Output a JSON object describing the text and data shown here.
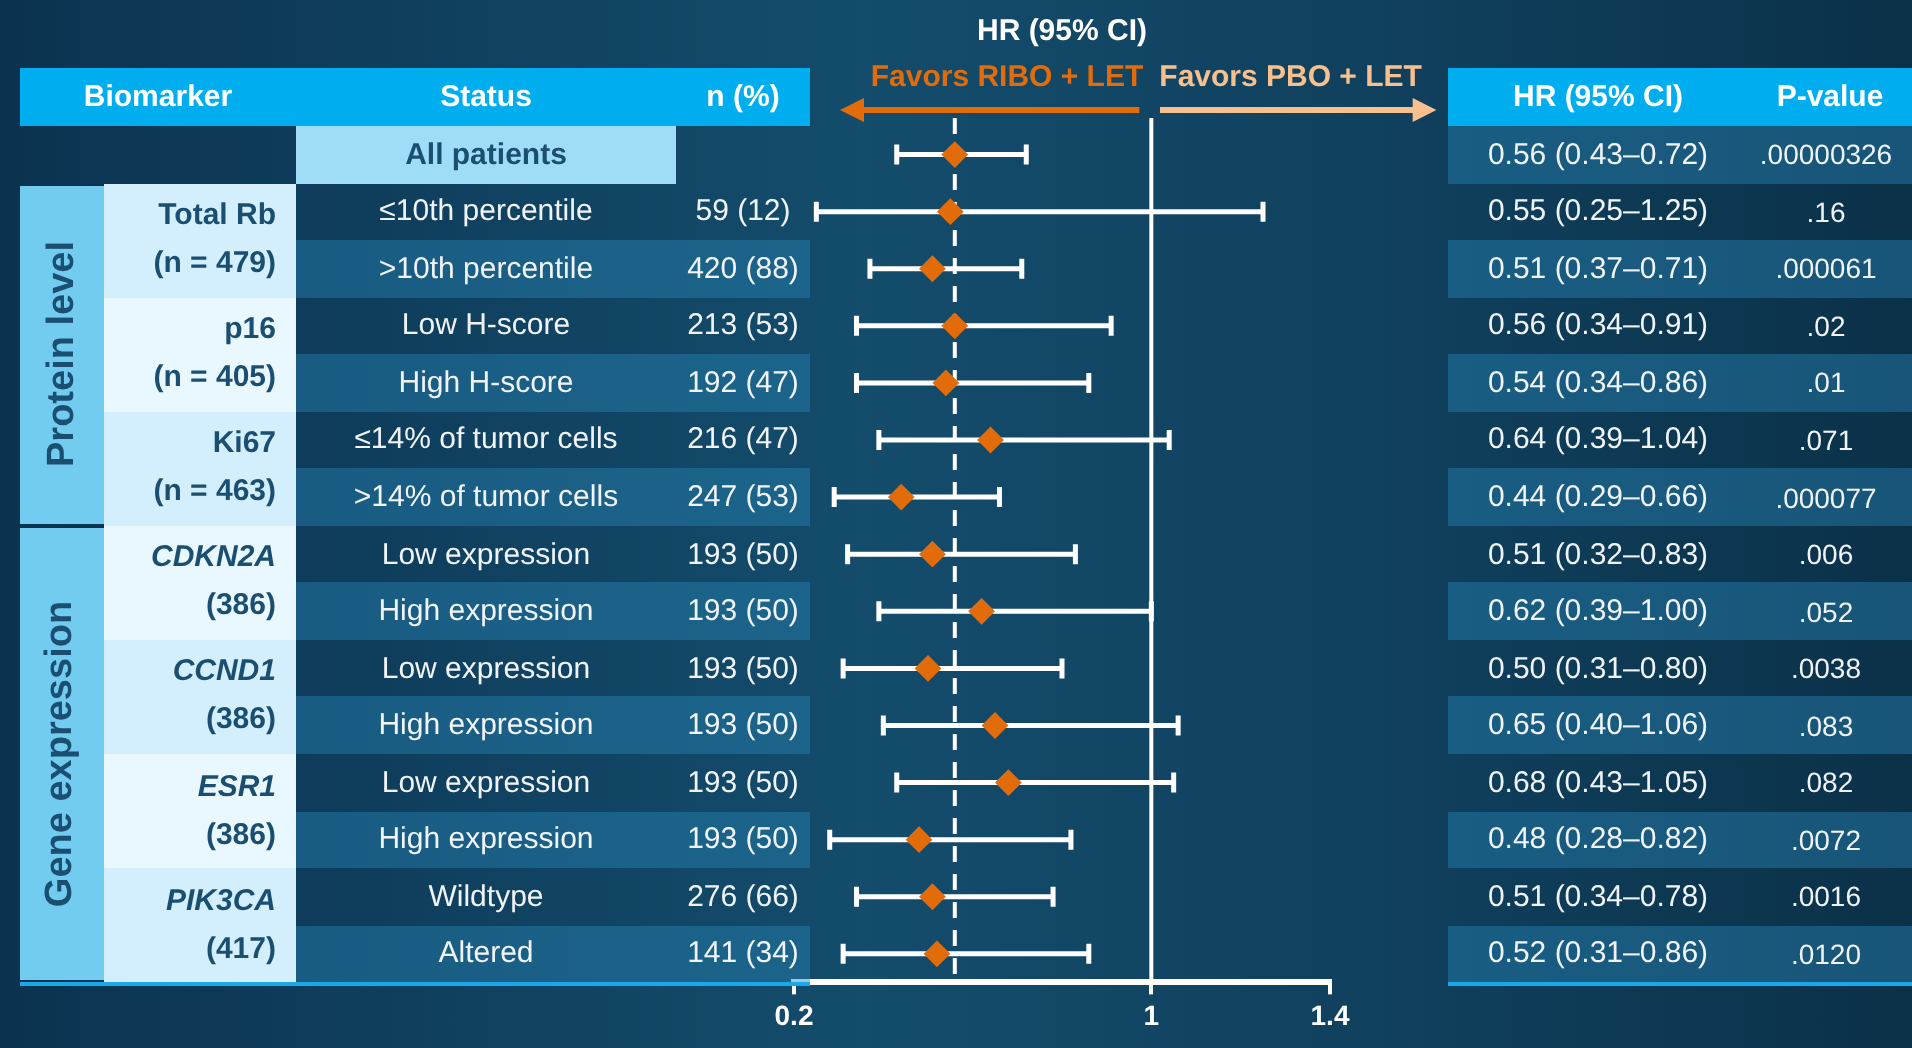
{
  "chart_data": {
    "type": "scatter",
    "orientation": "horizontal",
    "title": "HR (95% CI)",
    "categories": [
      "All patients",
      "≤10th percentile",
      ">10th percentile",
      "Low H-score",
      "High H-score",
      "≤14% of tumor cells",
      ">14% of tumor cells",
      "Low expression",
      "High expression",
      "Low expression",
      "High expression",
      "Low expression",
      "High expression",
      "Wildtype",
      "Altered"
    ],
    "values": [
      0.56,
      0.55,
      0.51,
      0.56,
      0.54,
      0.64,
      0.44,
      0.51,
      0.62,
      0.5,
      0.65,
      0.68,
      0.48,
      0.51,
      0.52
    ],
    "errors": [
      [
        0.43,
        0.72
      ],
      [
        0.25,
        1.25
      ],
      [
        0.37,
        0.71
      ],
      [
        0.34,
        0.91
      ],
      [
        0.34,
        0.86
      ],
      [
        0.39,
        1.04
      ],
      [
        0.29,
        0.66
      ],
      [
        0.32,
        0.83
      ],
      [
        0.39,
        1.0
      ],
      [
        0.31,
        0.8
      ],
      [
        0.4,
        1.06
      ],
      [
        0.43,
        1.05
      ],
      [
        0.28,
        0.82
      ],
      [
        0.34,
        0.78
      ],
      [
        0.31,
        0.86
      ]
    ],
    "value_labels": [
      "0.56 (0.43–0.72)",
      "0.55 (0.25–1.25)",
      "0.51 (0.37–0.71)",
      "0.56 (0.34–0.91)",
      "0.54 (0.34–0.86)",
      "0.64 (0.39–1.04)",
      "0.44 (0.29–0.66)",
      "0.51 (0.32–0.83)",
      "0.62 (0.39–1.00)",
      "0.50 (0.31–0.80)",
      "0.65 (0.40–1.06)",
      "0.68 (0.43–1.05)",
      "0.48 (0.28–0.82)",
      "0.51 (0.34–0.78)",
      "0.52 (0.31–0.86)"
    ],
    "color": "#e36c0a",
    "marker": "diamond",
    "xlim": [
      0.2,
      1.4
    ],
    "xticks": [
      0.2,
      1,
      1.4
    ],
    "ref_lines": [
      {
        "axis": "x",
        "value": 1,
        "color": "#ffffff",
        "line_style": "solid"
      },
      {
        "axis": "x",
        "value": 0.56,
        "color": "#ffffff",
        "line_style": "dashed"
      }
    ],
    "grid": false,
    "legend": false,
    "annotations": [
      "Biomarker",
      "Status",
      "n (%)",
      "HR (95% CI)",
      "P-value",
      "Favors RIBO + LET",
      "Favors PBO + LET",
      "Protein level",
      "Gene expression",
      "Total Rb (n = 479)",
      "p16 (n = 405)",
      "Ki67 (n = 463)",
      "CDKN2A (386)",
      "CCND1 (386)",
      "ESR1 (386)",
      "PIK3CA (417)",
      "59 (12)",
      "420 (88)",
      "213 (53)",
      "192 (47)",
      "216 (47)",
      "247 (53)",
      "193 (50)",
      "193 (50)",
      "193 (50)",
      "193 (50)",
      "193 (50)",
      "193 (50)",
      "276 (66)",
      "141 (34)",
      ".00000326",
      ".16",
      ".000061",
      ".02",
      ".01",
      ".071",
      ".000077",
      ".006",
      ".052",
      ".0038",
      ".083",
      ".082",
      ".0072",
      ".0016",
      ".0120"
    ]
  }
}
